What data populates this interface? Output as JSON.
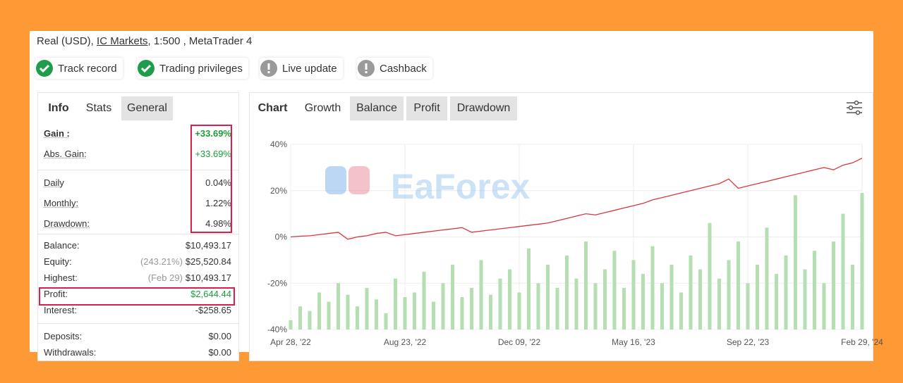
{
  "header": {
    "account": "Real (USD),",
    "broker": "IC Markets",
    "details": ", 1:500 , MetaTrader 4"
  },
  "badges": [
    {
      "label": "Track record",
      "status": "ok"
    },
    {
      "label": "Trading privileges",
      "status": "ok"
    },
    {
      "label": "Live update",
      "status": "warn"
    },
    {
      "label": "Cashback",
      "status": "warn"
    }
  ],
  "left_tabs": [
    "Info",
    "Stats",
    "General"
  ],
  "stats": [
    [
      {
        "label": "Gain :",
        "value": "+33.69%",
        "color": "#1a9e3a",
        "bold": true
      },
      {
        "label": "Abs. Gain:",
        "value": "+33.69%",
        "color": "#1a9e3a"
      }
    ],
    [
      {
        "label": "Daily",
        "value": "0.04%"
      },
      {
        "label": "Monthly:",
        "value": "1.22%"
      },
      {
        "label": "Drawdown:",
        "value": "4.98%"
      }
    ],
    [
      {
        "label": "Balance:",
        "value": "$10,493.17"
      },
      {
        "label": "Equity:",
        "note": "(243.21%)",
        "value": "$25,520.84"
      },
      {
        "label": "Highest:",
        "note": "(Feb 29)",
        "value": "$10,493.17"
      },
      {
        "label": "Profit:",
        "value": "$2,644.44",
        "color": "#1a9e3a"
      },
      {
        "label": "Interest:",
        "value": "-$258.65"
      }
    ],
    [
      {
        "label": "Deposits:",
        "value": "$0.00"
      },
      {
        "label": "Withdrawals:",
        "value": "$0.00"
      }
    ]
  ],
  "chart_tabs": [
    "Chart",
    "Growth",
    "Balance",
    "Profit",
    "Drawdown"
  ],
  "watermark": "EaForex",
  "chart_data": {
    "type": "line",
    "categories": [
      "Apr 28, '22",
      null,
      null,
      null,
      null,
      null,
      null,
      null,
      null,
      null,
      null,
      null,
      "Aug 23, '22",
      null,
      null,
      null,
      null,
      null,
      null,
      null,
      null,
      null,
      null,
      null,
      "Dec 09, '22",
      null,
      null,
      null,
      null,
      null,
      null,
      null,
      null,
      null,
      null,
      null,
      "May 16, '23",
      null,
      null,
      null,
      null,
      null,
      null,
      null,
      null,
      null,
      null,
      null,
      "Sep 22, '23",
      null,
      null,
      null,
      null,
      null,
      null,
      null,
      null,
      null,
      null,
      null,
      "Feb 29, '24"
    ],
    "ylim": [
      -40,
      40
    ],
    "yticks": [
      {
        "value": 40,
        "label": "40%"
      },
      {
        "value": 20,
        "label": "20%"
      },
      {
        "value": 0,
        "label": "0%"
      },
      {
        "value": -20,
        "label": "-20%"
      },
      {
        "value": -40,
        "label": "-40%"
      }
    ],
    "grid": true,
    "series": [
      {
        "name": "Growth",
        "color": "#d9363e",
        "values": [
          0,
          0.3,
          0.5,
          1,
          1.5,
          2,
          -1,
          0,
          0.5,
          1.5,
          2,
          0.5,
          1,
          1.5,
          2,
          2.5,
          3,
          3.5,
          4,
          2,
          2.5,
          3,
          3.5,
          4,
          4.5,
          5,
          5.5,
          6,
          7,
          8,
          9,
          10,
          9.5,
          10.5,
          11.5,
          12.5,
          13.5,
          14.5,
          16,
          17,
          18,
          19,
          20,
          21,
          22,
          23,
          25,
          21,
          22,
          23,
          24,
          25,
          26,
          27,
          28,
          29,
          30,
          29,
          31,
          32,
          34
        ]
      },
      {
        "name": "Profit",
        "color": "#b5dfb0",
        "type": "bar",
        "values": [
          -36,
          -30,
          -32,
          -24,
          -28,
          -20,
          -25,
          -30,
          -22,
          -27,
          -33,
          -18,
          -26,
          -24,
          -15,
          -28,
          -20,
          -12,
          -26,
          -22,
          -10,
          -25,
          -18,
          -14,
          -24,
          -5,
          -20,
          -12,
          -22,
          -8,
          -18,
          -2,
          -20,
          -14,
          -6,
          -22,
          -10,
          -16,
          -4,
          -20,
          -12,
          -24,
          -8,
          -14,
          6,
          -18,
          -10,
          -2,
          -20,
          -12,
          4,
          -16,
          -8,
          18,
          -14,
          -6,
          -20,
          -2,
          10,
          -12,
          19
        ]
      }
    ]
  }
}
